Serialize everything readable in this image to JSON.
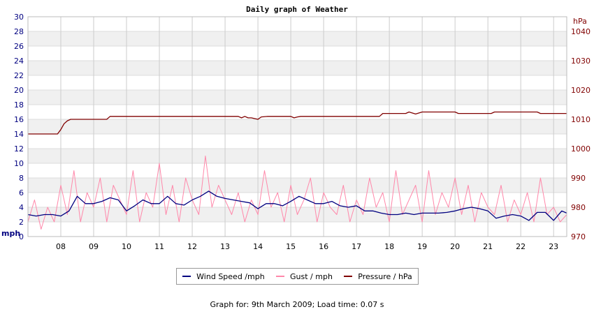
{
  "chart_data": {
    "type": "line",
    "title": "Daily graph of Weather",
    "y_left": {
      "unit": "mph",
      "ticks": [
        0,
        2,
        4,
        6,
        8,
        10,
        12,
        14,
        16,
        18,
        20,
        22,
        24,
        26,
        28,
        30
      ],
      "range": [
        0,
        30
      ]
    },
    "y_right": {
      "unit": "hPa",
      "ticks": [
        970,
        980,
        990,
        1000,
        1010,
        1020,
        1030,
        1040
      ],
      "range": [
        970,
        1045
      ]
    },
    "x": {
      "ticks": [
        "08",
        "09",
        "10",
        "11",
        "12",
        "13",
        "14",
        "15",
        "16",
        "17",
        "18",
        "19",
        "20",
        "21",
        "22",
        "23"
      ],
      "range": [
        7.0,
        23.4
      ]
    },
    "grid": true,
    "legend_position": "bottom",
    "series": [
      {
        "name": "Wind Speed /mph",
        "color": "#000080",
        "axis": "left",
        "x": [
          7.0,
          7.25,
          7.5,
          7.75,
          8.0,
          8.25,
          8.5,
          8.75,
          9.0,
          9.25,
          9.5,
          9.75,
          10.0,
          10.25,
          10.5,
          10.75,
          11.0,
          11.25,
          11.5,
          11.75,
          12.0,
          12.25,
          12.5,
          12.75,
          13.0,
          13.25,
          13.5,
          13.75,
          14.0,
          14.25,
          14.5,
          14.75,
          15.0,
          15.25,
          15.5,
          15.75,
          16.0,
          16.25,
          16.5,
          16.75,
          17.0,
          17.25,
          17.5,
          17.75,
          18.0,
          18.25,
          18.5,
          18.75,
          19.0,
          19.25,
          19.5,
          19.75,
          20.0,
          20.25,
          20.5,
          20.75,
          21.0,
          21.25,
          21.5,
          21.75,
          22.0,
          22.25,
          22.5,
          22.75,
          23.0,
          23.25,
          23.4
        ],
        "values": [
          3.0,
          2.8,
          3.0,
          3.0,
          2.8,
          3.5,
          5.5,
          4.5,
          4.5,
          4.8,
          5.3,
          5.0,
          3.5,
          4.2,
          5.0,
          4.5,
          4.5,
          5.5,
          4.5,
          4.3,
          5.0,
          5.5,
          6.2,
          5.5,
          5.2,
          5.0,
          4.8,
          4.6,
          3.8,
          4.5,
          4.5,
          4.2,
          4.8,
          5.5,
          5.0,
          4.5,
          4.5,
          4.8,
          4.2,
          4.0,
          4.2,
          3.5,
          3.5,
          3.2,
          3.0,
          3.0,
          3.2,
          3.0,
          3.2,
          3.2,
          3.2,
          3.3,
          3.5,
          3.8,
          4.0,
          3.8,
          3.5,
          2.5,
          2.8,
          3.0,
          2.8,
          2.2,
          3.3,
          3.3,
          2.2,
          3.5,
          3.2
        ]
      },
      {
        "name": "Gust / mph",
        "color": "#ff88aa",
        "axis": "left",
        "x": [
          7.0,
          7.2,
          7.4,
          7.6,
          7.8,
          8.0,
          8.2,
          8.4,
          8.6,
          8.8,
          9.0,
          9.2,
          9.4,
          9.6,
          9.8,
          10.0,
          10.2,
          10.4,
          10.6,
          10.8,
          11.0,
          11.2,
          11.4,
          11.6,
          11.8,
          12.0,
          12.2,
          12.4,
          12.6,
          12.8,
          13.0,
          13.2,
          13.4,
          13.6,
          13.8,
          14.0,
          14.2,
          14.4,
          14.6,
          14.8,
          15.0,
          15.2,
          15.4,
          15.6,
          15.8,
          16.0,
          16.2,
          16.4,
          16.6,
          16.8,
          17.0,
          17.2,
          17.4,
          17.6,
          17.8,
          18.0,
          18.2,
          18.4,
          18.6,
          18.8,
          19.0,
          19.2,
          19.4,
          19.6,
          19.8,
          20.0,
          20.2,
          20.4,
          20.6,
          20.8,
          21.0,
          21.2,
          21.4,
          21.6,
          21.8,
          22.0,
          22.2,
          22.4,
          22.6,
          22.8,
          23.0,
          23.2,
          23.4
        ],
        "values": [
          2,
          5,
          1,
          4,
          2,
          7,
          3,
          9,
          2,
          6,
          4,
          8,
          2,
          7,
          5,
          3,
          9,
          2,
          6,
          4,
          10,
          3,
          7,
          2,
          8,
          5,
          3,
          11,
          4,
          7,
          5,
          3,
          6,
          2,
          5,
          3,
          9,
          4,
          6,
          2,
          7,
          3,
          5,
          8,
          2,
          6,
          4,
          3,
          7,
          2,
          5,
          3,
          8,
          4,
          6,
          2,
          9,
          3,
          5,
          7,
          2,
          9,
          3,
          6,
          4,
          8,
          3,
          7,
          2,
          6,
          4,
          3,
          7,
          2,
          5,
          3,
          6,
          2,
          8,
          3,
          4,
          2,
          3
        ]
      },
      {
        "name": "Pressure / hPa",
        "color": "#800000",
        "axis": "right",
        "x": [
          7.0,
          7.9,
          8.0,
          8.1,
          8.2,
          8.3,
          9.4,
          9.5,
          13.4,
          13.5,
          13.6,
          13.7,
          13.8,
          14.0,
          14.1,
          14.3,
          14.5,
          15.0,
          15.1,
          15.2,
          15.3,
          17.7,
          17.8,
          18.5,
          18.6,
          18.8,
          19.0,
          20.0,
          20.1,
          21.1,
          21.2,
          22.5,
          22.6,
          23.4
        ],
        "values": [
          1005,
          1005,
          1006.5,
          1008.5,
          1009.5,
          1010,
          1010,
          1011,
          1011,
          1010.5,
          1011,
          1010.5,
          1010.5,
          1010,
          1010.8,
          1011,
          1011,
          1011,
          1010.5,
          1010.8,
          1011,
          1011,
          1012,
          1012,
          1012.5,
          1011.8,
          1012.5,
          1012.5,
          1012,
          1012,
          1012.5,
          1012.5,
          1012,
          1012
        ]
      }
    ]
  },
  "footer": {
    "prefix": "Graph for: ",
    "date": "9th March 2009",
    "suffix": "; Load time: 0.07 s"
  }
}
